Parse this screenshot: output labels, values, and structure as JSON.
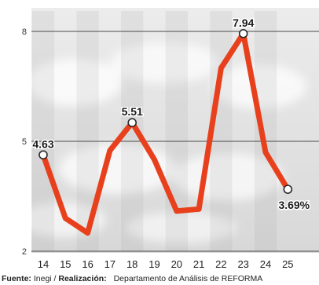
{
  "chart_data": {
    "type": "line",
    "x": [
      "14",
      "15",
      "16",
      "17",
      "18",
      "19",
      "20",
      "21",
      "22",
      "23",
      "24",
      "25"
    ],
    "series": [
      {
        "values": [
          4.63,
          2.9,
          2.5,
          4.75,
          5.51,
          4.5,
          3.1,
          3.15,
          7.0,
          7.94,
          4.7,
          3.69
        ]
      }
    ],
    "y_ticks": [
      "8",
      "5",
      "2"
    ],
    "ylim": [
      2,
      8
    ],
    "point_labels": [
      {
        "index": 0,
        "text": "4.63"
      },
      {
        "index": 4,
        "text": "5.51"
      },
      {
        "index": 9,
        "text": "7.94"
      },
      {
        "index": 11,
        "text": "3.69%"
      }
    ],
    "line_color": "#e8401c",
    "grid": "horizontal"
  },
  "footer": {
    "source_label": "Fuente:",
    "source_value": "Inegi /",
    "credit_label": "Realización:",
    "credit_value": "Departamento de Análisis de REFORMA"
  }
}
